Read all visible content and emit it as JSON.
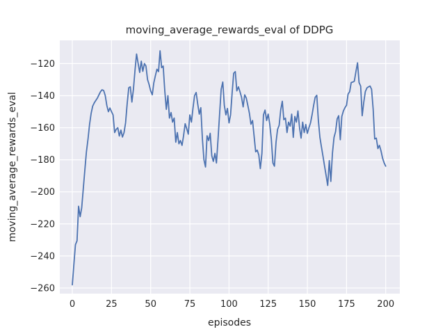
{
  "chart_data": {
    "type": "line",
    "title": "moving_average_rewards_eval of DDPG",
    "xlabel": "episodes",
    "ylabel": "moving_average_rewards_eval",
    "xlim": [
      -8,
      209
    ],
    "ylim": [
      -263.5,
      -105.5
    ],
    "grid": true,
    "legend_position": "none",
    "plot_background": "#eaeaf2",
    "grid_color": "#ffffff",
    "line_color": "#4c72b0",
    "text_color": "#262626",
    "xticks": [
      {
        "value": 0,
        "label": "0"
      },
      {
        "value": 25,
        "label": "25"
      },
      {
        "value": 50,
        "label": "50"
      },
      {
        "value": 75,
        "label": "75"
      },
      {
        "value": 100,
        "label": "100"
      },
      {
        "value": 125,
        "label": "125"
      },
      {
        "value": 150,
        "label": "150"
      },
      {
        "value": 175,
        "label": "175"
      },
      {
        "value": 200,
        "label": "200"
      }
    ],
    "yticks": [
      {
        "value": -120,
        "label": "−120"
      },
      {
        "value": -140,
        "label": "−140"
      },
      {
        "value": -160,
        "label": "−160"
      },
      {
        "value": -180,
        "label": "−180"
      },
      {
        "value": -200,
        "label": "−200"
      },
      {
        "value": -220,
        "label": "−220"
      },
      {
        "value": -240,
        "label": "−240"
      },
      {
        "value": -260,
        "label": "−260"
      }
    ],
    "series": [
      {
        "name": "moving_average_rewards_eval",
        "x_start": 0,
        "x_step": 1,
        "values": [
          -258,
          -245,
          -233,
          -230.5,
          -209,
          -215.5,
          -210,
          -198,
          -186,
          -175,
          -167,
          -158,
          -151,
          -146.5,
          -144.5,
          -143,
          -141.5,
          -139.5,
          -137.5,
          -136.3,
          -136.8,
          -140,
          -146,
          -150,
          -147.7,
          -150,
          -152,
          -163,
          -161,
          -160,
          -165.2,
          -161.5,
          -165.8,
          -163,
          -157,
          -145,
          -135,
          -134.5,
          -144,
          -136,
          -124,
          -114,
          -120,
          -125.5,
          -118.5,
          -124.8,
          -120,
          -121.5,
          -130,
          -133,
          -137,
          -139.5,
          -132,
          -127.5,
          -123.5,
          -125,
          -112,
          -122.5,
          -121.5,
          -137,
          -148.5,
          -140,
          -154,
          -150.5,
          -156.5,
          -154,
          -169,
          -163,
          -170,
          -168,
          -171,
          -165,
          -157.5,
          -160.5,
          -164,
          -152,
          -156.5,
          -148,
          -140,
          -138,
          -145,
          -151.5,
          -147.5,
          -167,
          -180,
          -184.5,
          -165,
          -168,
          -163.5,
          -177.5,
          -181,
          -176,
          -182,
          -167,
          -151,
          -136,
          -131.5,
          -146,
          -152,
          -148,
          -157,
          -152,
          -138,
          -126,
          -125,
          -137,
          -134.5,
          -137.5,
          -141,
          -147,
          -139.5,
          -141.5,
          -146,
          -151,
          -157.8,
          -155.5,
          -165,
          -175,
          -174,
          -177,
          -185.5,
          -176,
          -152,
          -149,
          -155.5,
          -151.5,
          -158,
          -167,
          -182,
          -184,
          -169,
          -161,
          -158.5,
          -149,
          -143.5,
          -155,
          -154,
          -163,
          -156.5,
          -159,
          -151.5,
          -166,
          -153,
          -156.5,
          -149.5,
          -160,
          -166.5,
          -156.5,
          -163,
          -158,
          -163.5,
          -160,
          -157,
          -152,
          -146,
          -141,
          -139.8,
          -155,
          -166,
          -172,
          -178,
          -184,
          -190,
          -196,
          -180.5,
          -193.5,
          -176,
          -166,
          -162.5,
          -154.5,
          -152.5,
          -167.5,
          -153,
          -149.5,
          -147.5,
          -146,
          -139,
          -137.5,
          -131.8,
          -131.5,
          -131,
          -125,
          -119.5,
          -131.8,
          -134,
          -152.5,
          -144,
          -137.5,
          -135.2,
          -134.5,
          -134,
          -136,
          -148.5,
          -167,
          -166.5,
          -173,
          -171,
          -174.5,
          -179,
          -182,
          -184
        ]
      }
    ]
  }
}
